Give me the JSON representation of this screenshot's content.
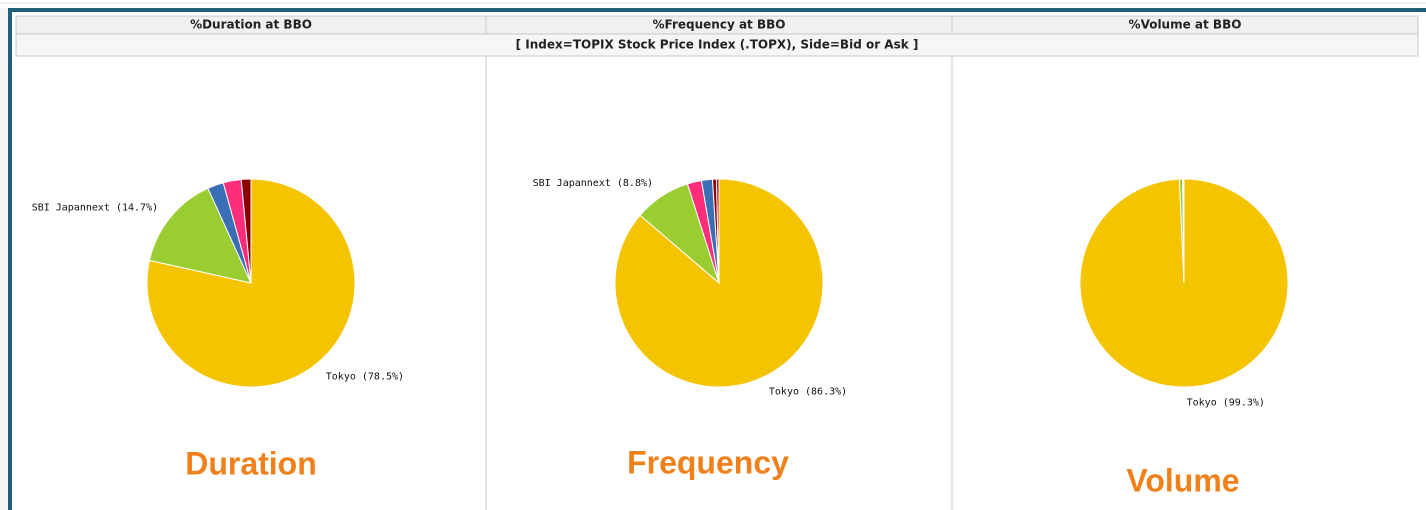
{
  "header": {
    "subtitle": "[ Index=TOPIX Stock Price Index (.TOPX),  Side=Bid or Ask ]"
  },
  "chart_data": [
    {
      "type": "pie",
      "title": "%Duration at BBO",
      "annotation": "Duration",
      "values": [
        78.5,
        14.7,
        2.5,
        2.8,
        1.5
      ],
      "value_labels": [
        "Tokyo (78.5%)",
        "SBI Japannext (14.7%)",
        null,
        null,
        null
      ],
      "colors": [
        "#f5c400",
        "#9acd32",
        "#3a6eb5",
        "#ff2d7a",
        "#8b0000"
      ]
    },
    {
      "type": "pie",
      "title": "%Frequency at BBO",
      "annotation": "Frequency",
      "values": [
        86.3,
        8.8,
        2.2,
        1.7,
        0.6,
        0.4
      ],
      "value_labels": [
        "Tokyo (86.3%)",
        "SBI Japannext (8.8%)",
        null,
        null,
        null,
        null
      ],
      "colors": [
        "#f5c400",
        "#9acd32",
        "#ff2d7a",
        "#3a6eb5",
        "#8b0000",
        "#cc0000"
      ]
    },
    {
      "type": "pie",
      "title": "%Volume at BBO",
      "annotation": "Volume",
      "values": [
        99.3,
        0.5,
        0.1,
        0.1
      ],
      "value_labels": [
        "Tokyo (99.3%)",
        null,
        null,
        null
      ],
      "colors": [
        "#f5c400",
        "#9acd32",
        "#3a6eb5",
        "#ff2d7a"
      ]
    }
  ]
}
